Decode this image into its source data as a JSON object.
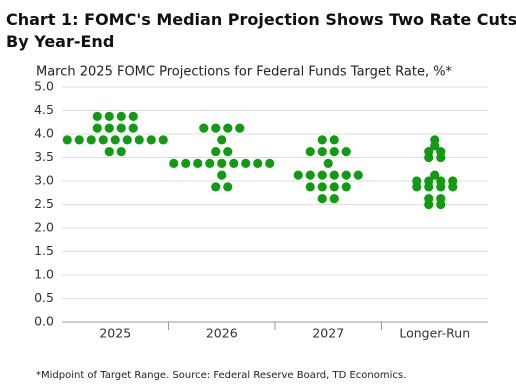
{
  "chart_data": {
    "type": "dot",
    "title": "Chart 1: FOMC's Median Projection Shows Two Rate Cuts By Year-End",
    "subtitle": "March 2025 FOMC Projections for Federal Funds Target Rate, %*",
    "footnote": "*Midpoint of Target Range. Source: Federal Reserve Board, TD Economics.",
    "categories": [
      "2025",
      "2026",
      "2027",
      "Longer-Run"
    ],
    "color": "#139a13",
    "values": [
      [
        4.375,
        4.375,
        4.375,
        4.375,
        4.125,
        4.125,
        4.125,
        4.125,
        3.875,
        3.875,
        3.875,
        3.875,
        3.875,
        3.875,
        3.875,
        3.875,
        3.875,
        3.625,
        3.625
      ],
      [
        4.125,
        4.125,
        4.125,
        4.125,
        3.875,
        3.625,
        3.625,
        3.375,
        3.375,
        3.375,
        3.375,
        3.375,
        3.375,
        3.375,
        3.375,
        3.375,
        3.125,
        2.875,
        2.875
      ],
      [
        3.875,
        3.875,
        3.625,
        3.625,
        3.625,
        3.625,
        3.375,
        3.125,
        3.125,
        3.125,
        3.125,
        3.125,
        3.125,
        2.875,
        2.875,
        2.875,
        2.875,
        2.625,
        2.625
      ],
      [
        3.875,
        3.75,
        3.625,
        3.625,
        3.5,
        3.5,
        3.125,
        3.0,
        3.0,
        3.0,
        3.0,
        2.875,
        2.875,
        2.875,
        2.875,
        2.625,
        2.625,
        2.5,
        2.5
      ]
    ],
    "ylim": [
      0,
      5
    ],
    "yticks": [
      {
        "value": 0,
        "label": "0.0"
      },
      0.5,
      {
        "value": 1,
        "label": "1.0"
      },
      1.5,
      {
        "value": 2,
        "label": "2.0"
      },
      2.5,
      {
        "value": 3,
        "label": "3.0"
      },
      3.5,
      {
        "value": 4,
        "label": "4.0"
      },
      4.5,
      {
        "value": 5,
        "label": "5.0"
      }
    ],
    "grid": true
  }
}
